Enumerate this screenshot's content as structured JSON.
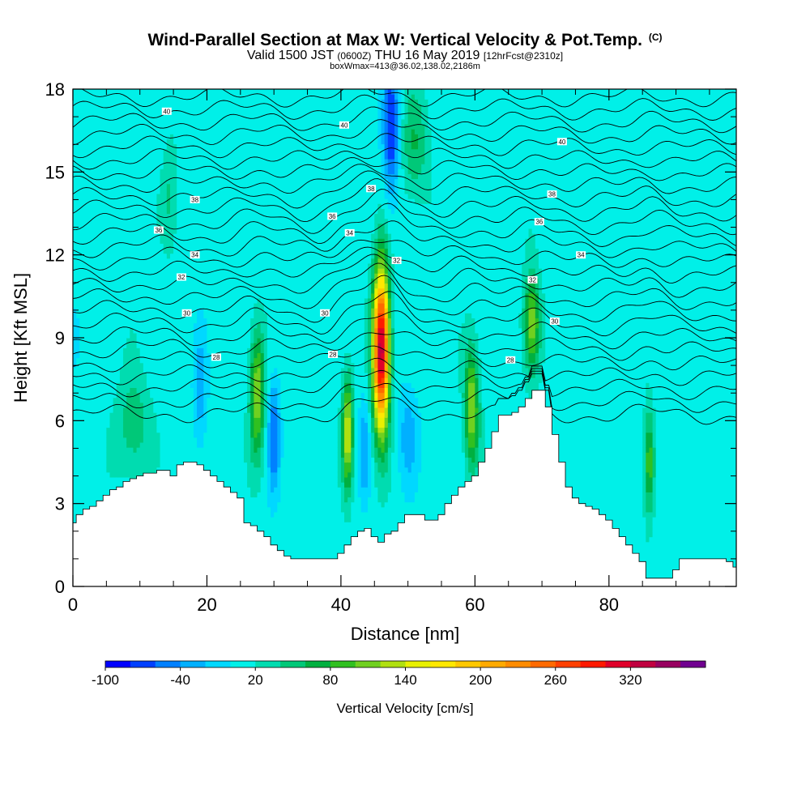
{
  "chart_data": {
    "type": "heatmap",
    "title": "Wind-Parallel Section at Max W: Vertical Velocity & Pot.Temp.",
    "title_mark": "(C)",
    "subtitle_valid": "Valid 1500 JST",
    "subtitle_z": "(0600Z)",
    "subtitle_date": "THU 16 May 2019",
    "subtitle_fcst": "[12hrFcst@2310z]",
    "subtitle2": "boxWmax=413@36.02,138.02,2186m",
    "xlabel": "Distance [nm]",
    "ylabel": "Height [Kft MSL]",
    "xlim": [
      0,
      99
    ],
    "ylim": [
      0,
      18
    ],
    "x_ticks": [
      "0",
      "20",
      "40",
      "60",
      "80"
    ],
    "y_ticks": [
      "0",
      "3",
      "6",
      "9",
      "12",
      "15",
      "18"
    ],
    "background_w": 10,
    "updrafts": [
      {
        "x": 46,
        "z_center": 8.6,
        "x_halfwidth": 1.2,
        "z_halfwidth": 2.9,
        "w": 330
      },
      {
        "x": 41,
        "z_center": 5.6,
        "x_halfwidth": 0.8,
        "z_halfwidth": 2.0,
        "w": 130
      },
      {
        "x": 27.5,
        "z_center": 7.0,
        "x_halfwidth": 1.1,
        "z_halfwidth": 2.3,
        "w": 110
      },
      {
        "x": 59.5,
        "z_center": 6.5,
        "x_halfwidth": 1.1,
        "z_halfwidth": 2.2,
        "w": 110
      },
      {
        "x": 68.5,
        "z_center": 9.5,
        "x_halfwidth": 1.2,
        "z_halfwidth": 1.8,
        "w": 110
      },
      {
        "x": 86,
        "z_center": 4.5,
        "x_halfwidth": 0.8,
        "z_halfwidth": 1.8,
        "w": 90
      },
      {
        "x": 9,
        "z_center": 5.8,
        "x_halfwidth": 2.5,
        "z_halfwidth": 2.0,
        "w": 45
      },
      {
        "x": 51,
        "z_center": 16.0,
        "x_halfwidth": 2.0,
        "z_halfwidth": 2.0,
        "w": 50
      },
      {
        "x": 14.5,
        "z_center": 14.0,
        "x_halfwidth": 1.2,
        "z_halfwidth": 2.0,
        "w": 35
      }
    ],
    "downdrafts": [
      {
        "x": 30,
        "z_center": 5.5,
        "x_halfwidth": 0.9,
        "z_halfwidth": 2.0,
        "w": -70
      },
      {
        "x": 19,
        "z_center": 7.0,
        "x_halfwidth": 1.0,
        "z_halfwidth": 2.0,
        "w": -45
      },
      {
        "x": 47.5,
        "z_center": 16.5,
        "x_halfwidth": 1.2,
        "z_halfwidth": 2.5,
        "w": -90
      },
      {
        "x": 50,
        "z_center": 5.5,
        "x_halfwidth": 1.5,
        "z_halfwidth": 1.8,
        "w": -40
      },
      {
        "x": 43.5,
        "z_center": 5.0,
        "x_halfwidth": 0.8,
        "z_halfwidth": 1.8,
        "w": -45
      },
      {
        "x": 0.5,
        "z_center": 9.0,
        "x_halfwidth": 1.0,
        "z_halfwidth": 1.5,
        "w": -20
      }
    ],
    "terrain": {
      "x": [
        0,
        1,
        2,
        3,
        4,
        5,
        6,
        7,
        8,
        9,
        10,
        11,
        12,
        13,
        14,
        15,
        16,
        17,
        18,
        19,
        20,
        21,
        22,
        23,
        24,
        25,
        26,
        27,
        28,
        29,
        30,
        31,
        32,
        33,
        34,
        35,
        36,
        37,
        38,
        39,
        40,
        41,
        42,
        43,
        44,
        45,
        46,
        47,
        48,
        49,
        50,
        51,
        52,
        53,
        54,
        55,
        56,
        57,
        58,
        59,
        60,
        61,
        62,
        63,
        64,
        65,
        66,
        67,
        68,
        69,
        70,
        71,
        72,
        73,
        74,
        75,
        76,
        77,
        78,
        79,
        80,
        81,
        82,
        83,
        84,
        85,
        86,
        87,
        88,
        89,
        90,
        91,
        92,
        93,
        94,
        95,
        96,
        97,
        98,
        99
      ],
      "z": [
        2.3,
        2.6,
        2.8,
        2.9,
        3.1,
        3.3,
        3.5,
        3.6,
        3.8,
        3.9,
        4.0,
        4.1,
        4.1,
        4.2,
        4.2,
        4.0,
        4.4,
        4.5,
        4.5,
        4.4,
        4.2,
        4.0,
        3.8,
        3.6,
        3.4,
        3.2,
        2.3,
        2.2,
        2.0,
        1.8,
        1.5,
        1.3,
        1.1,
        1.0,
        1.0,
        1.0,
        1.0,
        1.0,
        1.0,
        1.0,
        1.2,
        1.5,
        1.8,
        2.0,
        2.1,
        1.8,
        1.6,
        1.9,
        2.0,
        2.3,
        2.6,
        2.6,
        2.6,
        2.4,
        2.4,
        2.6,
        3.0,
        3.3,
        3.6,
        3.8,
        4.0,
        4.5,
        5.0,
        5.6,
        6.2,
        6.2,
        6.3,
        6.5,
        6.8,
        7.1,
        7.1,
        6.5,
        5.5,
        4.5,
        3.6,
        3.2,
        3.0,
        2.9,
        2.8,
        2.6,
        2.4,
        2.1,
        1.8,
        1.5,
        1.2,
        0.9,
        0.3,
        0.3,
        0.3,
        0.3,
        0.6,
        1.0,
        1.0,
        1.0,
        1.0,
        1.0,
        1.0,
        1.0,
        0.9,
        0.7
      ]
    },
    "theta_labels": [
      {
        "x": 14,
        "z": 17.2,
        "text": "40"
      },
      {
        "x": 40.5,
        "z": 16.7,
        "text": "40"
      },
      {
        "x": 73,
        "z": 16.1,
        "text": "40"
      },
      {
        "x": 18.2,
        "z": 14.0,
        "text": "38"
      },
      {
        "x": 44.5,
        "z": 14.4,
        "text": "38"
      },
      {
        "x": 71.5,
        "z": 14.2,
        "text": "38"
      },
      {
        "x": 12.8,
        "z": 12.9,
        "text": "36"
      },
      {
        "x": 38.7,
        "z": 13.4,
        "text": "36"
      },
      {
        "x": 69.6,
        "z": 13.2,
        "text": "36"
      },
      {
        "x": 18.2,
        "z": 12.0,
        "text": "34"
      },
      {
        "x": 41.3,
        "z": 12.8,
        "text": "34"
      },
      {
        "x": 75.8,
        "z": 12.0,
        "text": "34"
      },
      {
        "x": 16.2,
        "z": 11.2,
        "text": "32"
      },
      {
        "x": 48.3,
        "z": 11.8,
        "text": "32"
      },
      {
        "x": 68.6,
        "z": 11.1,
        "text": "32"
      },
      {
        "x": 17.0,
        "z": 9.9,
        "text": "30"
      },
      {
        "x": 37.6,
        "z": 9.9,
        "text": "30"
      },
      {
        "x": 71.9,
        "z": 9.6,
        "text": "30"
      },
      {
        "x": 21.4,
        "z": 8.3,
        "text": "28"
      },
      {
        "x": 38.8,
        "z": 8.4,
        "text": "28"
      },
      {
        "x": 65.3,
        "z": 8.2,
        "text": "28"
      }
    ],
    "colorbar": {
      "label": "Vertical Velocity [cm/s]",
      "levels": [
        -100,
        -80,
        -60,
        -40,
        -20,
        0,
        20,
        40,
        60,
        80,
        100,
        120,
        140,
        160,
        180,
        200,
        220,
        240,
        260,
        280,
        300,
        320,
        340,
        360
      ],
      "colors": [
        "#0000ff",
        "#0040ff",
        "#0080ff",
        "#00b0ff",
        "#00d8ff",
        "#00f0e8",
        "#00dcb0",
        "#00c878",
        "#00b040",
        "#30c020",
        "#70d020",
        "#b0e010",
        "#e8f000",
        "#ffe800",
        "#ffc800",
        "#ffaa00",
        "#ff8c00",
        "#ff6a00",
        "#ff4000",
        "#ff1a00",
        "#e0002a",
        "#c00040",
        "#980060",
        "#700090"
      ],
      "tick_labels": [
        "-100",
        "-40",
        "20",
        "80",
        "140",
        "200",
        "260",
        "320"
      ]
    }
  }
}
